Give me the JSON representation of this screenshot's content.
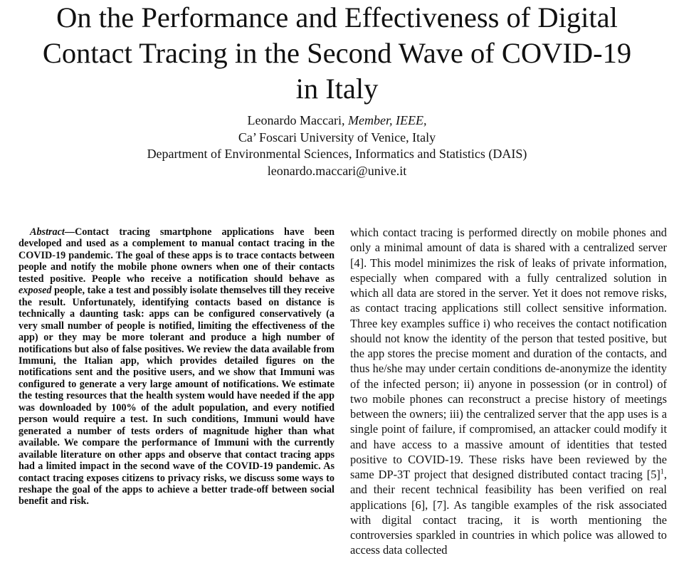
{
  "title_lines": [
    "On the Performance and Effectiveness of Digital",
    "Contact Tracing in the Second Wave of COVID-19",
    "in Italy"
  ],
  "author": {
    "name": "Leonardo Maccari,",
    "role": "Member, IEEE,",
    "affiliation": "Ca’ Foscari University of Venice, Italy",
    "department": "Department of Environmental Sciences, Informatics and Statistics (DAIS)",
    "email": "leonardo.maccari@unive.it"
  },
  "abstract": {
    "label": "Abstract",
    "dash": "—",
    "text_1": "Contact tracing smartphone applications have been developed and used as a complement to manual contact tracing in the COVID-19 pandemic. The goal of these apps is to trace contacts between people and notify the mobile phone owners when one of their contacts tested positive. People who receive a notification should behave as",
    "em_word": "exposed",
    "text_2": "people, take a test and possibly isolate themselves till they receive the result. Unfortunately, identifying contacts based on distance is technically a daunting task: apps can be configured conservatively (a very small number of people is notified, limiting the effectiveness of the app) or they may be more tolerant and produce a high number of notifications but also of false positives. We review the data available from Immuni, the Italian app, which provides detailed figures on the notifications sent and the positive users, and we show that Immuni was configured to generate a very large amount of notifications. We estimate the testing resources that the health system would have needed if the app was downloaded by 100% of the adult population, and every notified person would require a test. In such conditions, Immuni would have generated a number of tests orders of magnitude higher than what available. We compare the performance of Immuni with the currently available literature on other apps and observe that contact tracing apps had a limited impact in the second wave of the COVID-19 pandemic. As contact tracing exposes citizens to privacy risks, we discuss some ways to reshape the goal of the apps to achieve a better trade-off between social benefit and risk."
  },
  "body_right": {
    "text_1": "which contact tracing is performed directly on mobile phones and only a minimal amount of data is shared with a centralized server [4]. This model minimizes the risk of leaks of private information, especially when compared with a fully centralized solution in which all data are stored in the server. Yet it does not remove risks, as contact tracing applications still collect sensitive information. Three key examples suffice i) who receives the contact notification should not know the identity of the person that tested positive, but the app stores the precise moment and duration of the contacts, and thus he/she may under certain conditions de-anonymize the identity of the infected person; ii) anyone in possession (or in control) of two mobile phones can reconstruct a precise history of meetings between the owners; iii) the centralized server that the app uses is a single point of failure, if compromised, an attacker could modify it and have access to a massive amount of identities that tested positive to COVID-19. These risks have been reviewed by the same DP-3T project that designed distributed contact tracing [5]",
    "footnote_mark": "1",
    "text_2": ", and their recent technical feasibility has been verified on real applications [6], [7]. As tangible examples of the risk associated with digital contact tracing, it is worth mentioning the controversies sparkled in countries in which police was allowed to access data collected"
  }
}
